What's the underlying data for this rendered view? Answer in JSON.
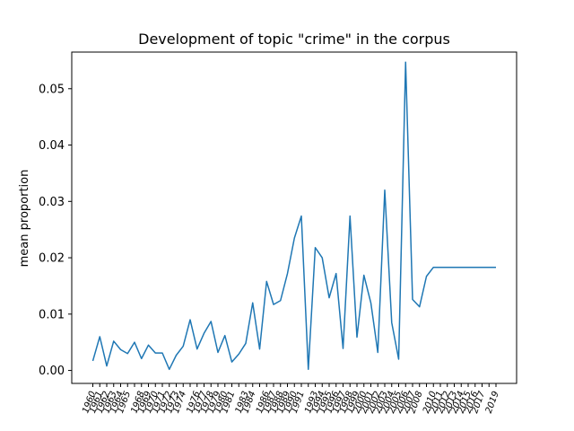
{
  "chart_data": {
    "type": "line",
    "title": "Development of topic \"crime\" in the corpus",
    "xlabel": "",
    "ylabel": "mean proportion",
    "ylim": [
      -0.0023,
      0.0565
    ],
    "yticks": [
      0.0,
      0.01,
      0.02,
      0.03,
      0.04,
      0.05
    ],
    "ytick_labels": [
      "0.00",
      "0.01",
      "0.02",
      "0.03",
      "0.04",
      "0.05"
    ],
    "x": [
      "1960",
      "1961",
      "1962",
      "1963",
      "1964",
      "1965",
      "1966",
      "1968",
      "1969",
      "1970",
      "1971",
      "1972",
      "1973",
      "1974",
      "1975",
      "1976",
      "1977",
      "1978",
      "1979",
      "1980",
      "1981",
      "1982",
      "1983",
      "1984",
      "1985",
      "1986",
      "1987",
      "1988",
      "1989",
      "1990",
      "1991",
      "1992",
      "1993",
      "1994",
      "1995",
      "1996",
      "1997",
      "1998",
      "1999",
      "2000",
      "2001",
      "2002",
      "2003",
      "2004",
      "2005",
      "2006",
      "2007",
      "2008",
      "2009",
      "2010",
      "2011",
      "2012",
      "2013",
      "2014",
      "2015",
      "2016",
      "2017",
      "2018",
      "2019"
    ],
    "x_tick_labels": [
      "1960",
      "1961",
      "1962",
      "1963",
      "1964",
      "1965",
      "1968",
      "1969",
      "1970",
      "1971",
      "1972",
      "1973",
      "1974",
      "1976",
      "1977",
      "1978",
      "1979",
      "1980",
      "1981",
      "1983",
      "1984",
      "1986",
      "1987",
      "1988",
      "1989",
      "1990",
      "1991",
      "1993",
      "1994",
      "1995",
      "1996",
      "1997",
      "1998",
      "1999",
      "2000",
      "2001",
      "2002",
      "2003",
      "2004",
      "2005",
      "2006",
      "2007",
      "2008",
      "2010",
      "2011",
      "2012",
      "2013",
      "2014",
      "2015",
      "2016",
      "2017",
      "2019"
    ],
    "series": [
      {
        "color": "#1f77b4",
        "values": [
          0.0017,
          0.006,
          0.0008,
          0.0052,
          0.0037,
          0.003,
          0.005,
          0.0021,
          0.0045,
          0.0031,
          0.0031,
          0.0002,
          0.0027,
          0.0043,
          0.009,
          0.0038,
          0.0066,
          0.0087,
          0.0032,
          0.0062,
          0.0015,
          0.0029,
          0.0048,
          0.012,
          0.0038,
          0.0158,
          0.0117,
          0.0124,
          0.0172,
          0.0235,
          0.0274,
          0.0002,
          0.0218,
          0.02,
          0.0129,
          0.0172,
          0.0039,
          0.0274,
          0.0059,
          0.0169,
          0.012,
          0.0032,
          0.032,
          0.0085,
          0.002,
          0.0547,
          0.0126,
          0.0113,
          0.0167,
          0.0183,
          0.0183,
          0.0183,
          0.0183,
          0.0183,
          0.0183,
          0.0183,
          0.0183,
          0.0183,
          0.0183
        ]
      }
    ],
    "grid": false,
    "legend": "none"
  }
}
